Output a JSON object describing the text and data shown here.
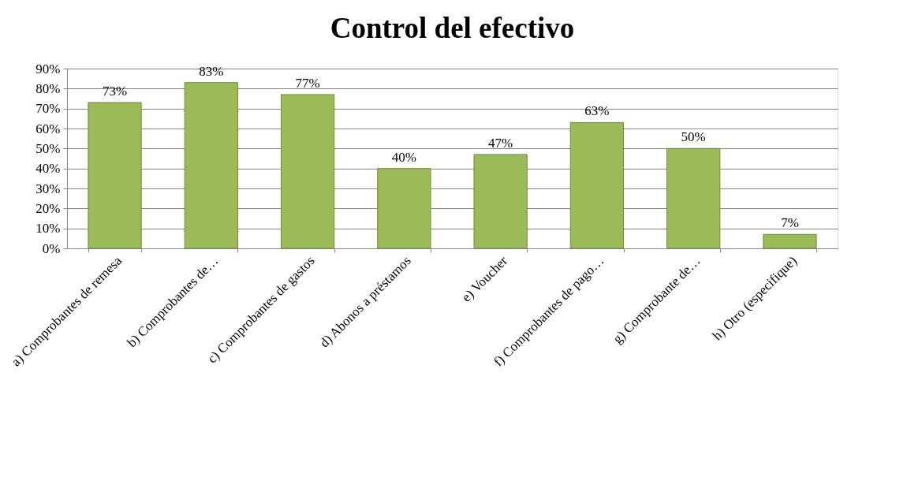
{
  "chart_data": {
    "type": "bar",
    "title": "Control del efectivo",
    "categories": [
      "a) Comprobantes de remesa",
      "b) Comprobantes de…",
      "c) Comprobantes de gastos",
      "d) Abonos a préstamos",
      "e) Voucher",
      "f) Comprobantes de pago…",
      "g) Comprobante de…",
      "h) Otro (especifique)"
    ],
    "values": [
      73,
      83,
      77,
      40,
      47,
      63,
      50,
      7
    ],
    "value_labels": [
      "73%",
      "83%",
      "77%",
      "40%",
      "47%",
      "63%",
      "50%",
      "7%"
    ],
    "color": "#9bbb59",
    "ylim": [
      0,
      90
    ],
    "yticks": [
      {
        "value": 0,
        "label": "0%"
      },
      {
        "value": 10,
        "label": "10%"
      },
      {
        "value": 20,
        "label": "20%"
      },
      {
        "value": 30,
        "label": "30%"
      },
      {
        "value": 40,
        "label": "40%"
      },
      {
        "value": 50,
        "label": "50%"
      },
      {
        "value": 60,
        "label": "60%"
      },
      {
        "value": 70,
        "label": "70%"
      },
      {
        "value": 80,
        "label": "80%"
      },
      {
        "value": 90,
        "label": "90%"
      }
    ],
    "grid": "y"
  }
}
